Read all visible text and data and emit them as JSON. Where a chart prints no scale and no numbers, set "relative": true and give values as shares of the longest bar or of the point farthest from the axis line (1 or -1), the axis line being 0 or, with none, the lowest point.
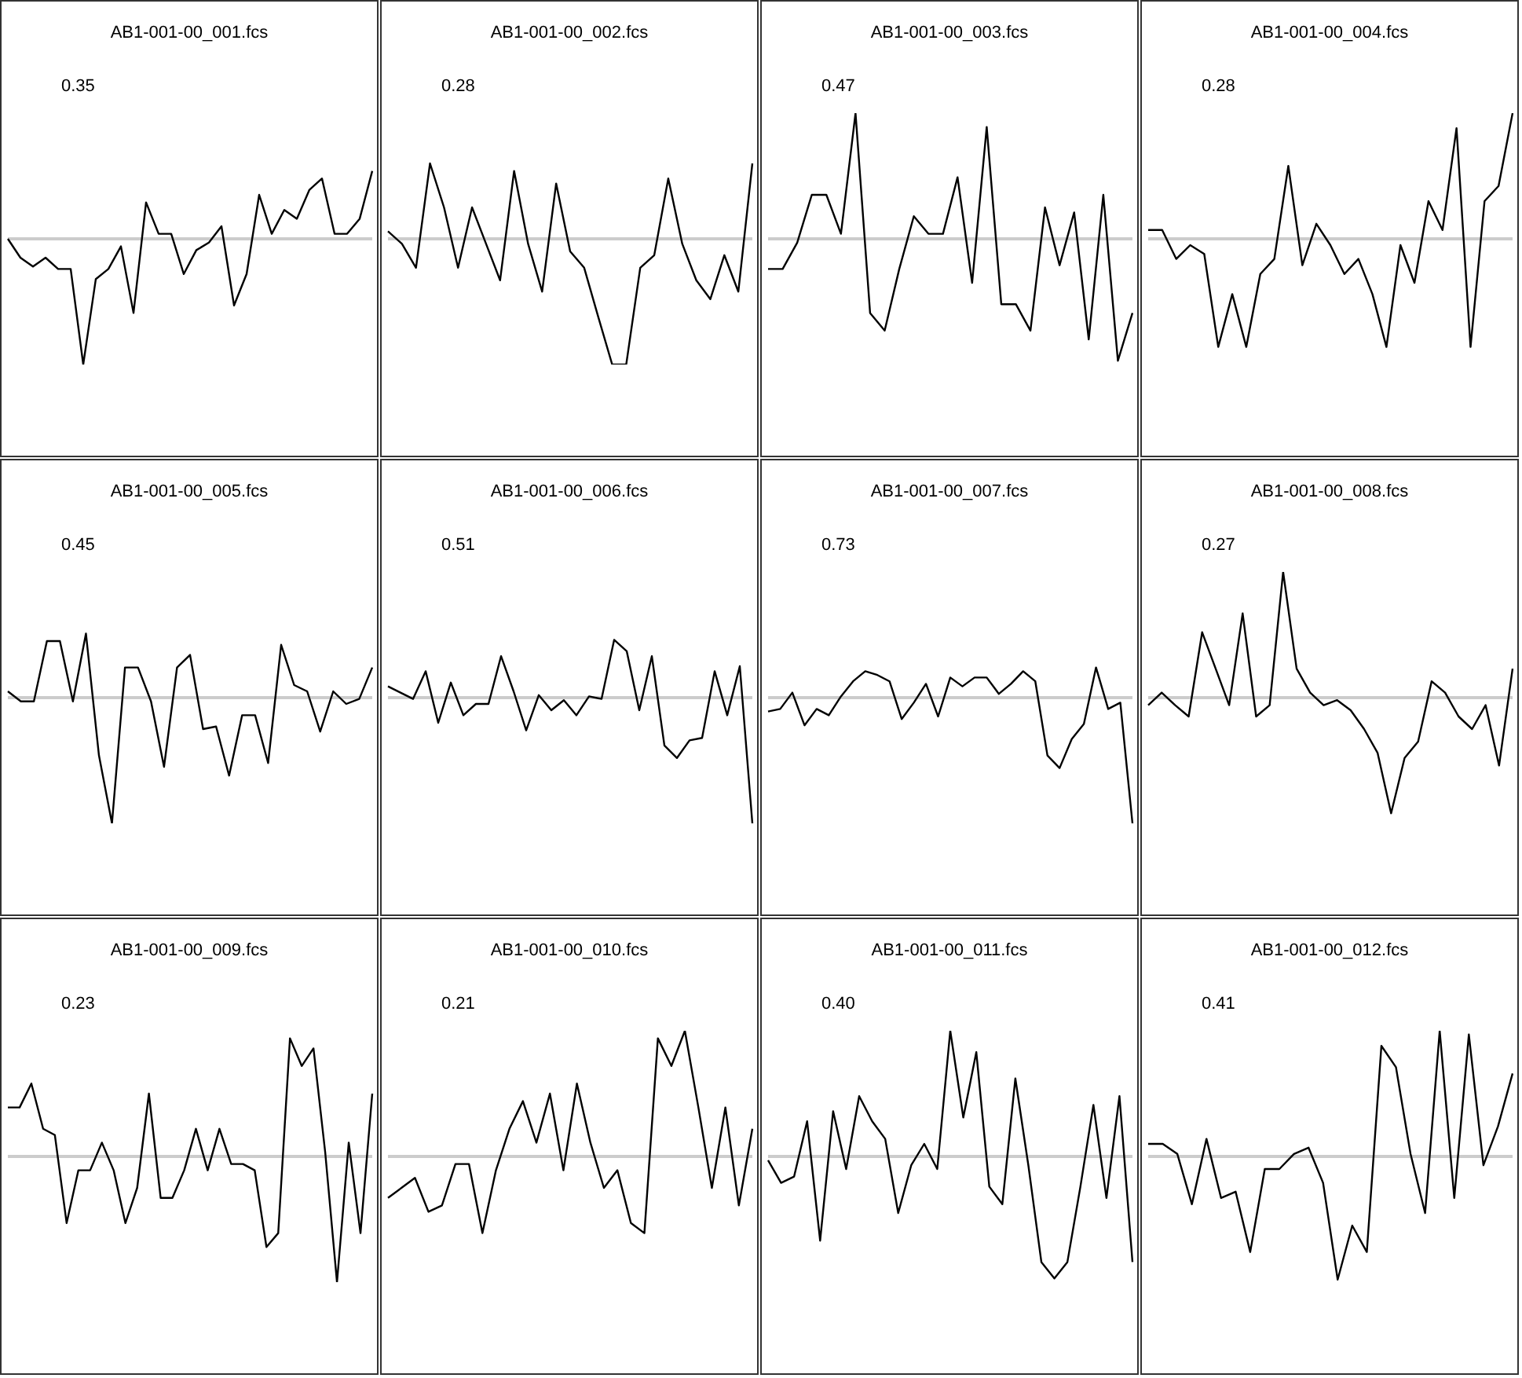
{
  "chart_data": [
    {
      "type": "line",
      "title": "AB1-001-00_001.fcs",
      "annotations": [
        "0.35"
      ],
      "relative": true,
      "tick_labels": false,
      "grid": false,
      "categories": [
        null,
        null,
        null,
        null,
        null,
        null,
        null,
        null,
        null,
        null,
        null,
        null,
        null,
        null,
        null,
        null,
        null,
        null,
        null,
        null,
        null,
        null,
        null,
        null,
        null,
        null,
        null,
        null,
        null,
        null
      ],
      "series": [
        {
          "color": "#000000",
          "values": [
            0,
            -0.15,
            -0.22,
            -0.15,
            -0.24,
            -0.24,
            -1,
            -0.32,
            -0.24,
            -0.06,
            -0.59,
            0.29,
            0.04,
            0.04,
            -0.28,
            -0.09,
            -0.03,
            0.1,
            -0.53,
            -0.28,
            0.35,
            0.04,
            0.23,
            0.16,
            0.39,
            0.48,
            0.04,
            0.04,
            0.16,
            0.54
          ]
        }
      ],
      "ref_lines": [
        {
          "axis": "y",
          "value": 0,
          "color": "#cccccc"
        }
      ]
    },
    {
      "type": "line",
      "title": "AB1-001-00_002.fcs",
      "annotations": [
        "0.28"
      ],
      "relative": true,
      "tick_labels": false,
      "grid": false,
      "categories": [
        null,
        null,
        null,
        null,
        null,
        null,
        null,
        null,
        null,
        null,
        null,
        null,
        null,
        null,
        null,
        null,
        null,
        null,
        null,
        null,
        null,
        null,
        null,
        null,
        null,
        null,
        null
      ],
      "series": [
        {
          "color": "#000000",
          "values": [
            0.06,
            -0.04,
            -0.23,
            0.6,
            0.25,
            -0.23,
            0.25,
            -0.04,
            -0.33,
            0.54,
            -0.04,
            -0.42,
            0.44,
            -0.1,
            -0.23,
            -0.62,
            -1,
            -1,
            -0.23,
            -0.13,
            0.48,
            -0.04,
            -0.33,
            -0.48,
            -0.13,
            -0.42,
            0.6
          ]
        }
      ],
      "ref_lines": [
        {
          "axis": "y",
          "value": 0,
          "color": "#cccccc"
        }
      ]
    },
    {
      "type": "line",
      "title": "AB1-001-00_003.fcs",
      "annotations": [
        "0.47"
      ],
      "relative": true,
      "tick_labels": false,
      "grid": false,
      "categories": [
        null,
        null,
        null,
        null,
        null,
        null,
        null,
        null,
        null,
        null,
        null,
        null,
        null,
        null,
        null,
        null,
        null,
        null,
        null,
        null,
        null,
        null,
        null,
        null,
        null,
        null
      ],
      "series": [
        {
          "color": "#000000",
          "values": [
            -0.24,
            -0.24,
            -0.03,
            0.35,
            0.35,
            0.04,
            1,
            -0.59,
            -0.73,
            -0.24,
            0.18,
            0.04,
            0.04,
            0.49,
            -0.35,
            0.89,
            -0.52,
            -0.52,
            -0.73,
            0.25,
            -0.21,
            0.21,
            -0.8,
            0.35,
            -0.97,
            -0.59
          ]
        }
      ],
      "ref_lines": [
        {
          "axis": "y",
          "value": 0,
          "color": "#cccccc"
        }
      ]
    },
    {
      "type": "line",
      "title": "AB1-001-00_004.fcs",
      "annotations": [
        "0.28"
      ],
      "relative": true,
      "tick_labels": false,
      "grid": false,
      "categories": [
        null,
        null,
        null,
        null,
        null,
        null,
        null,
        null,
        null,
        null,
        null,
        null,
        null,
        null,
        null,
        null,
        null,
        null,
        null,
        null,
        null,
        null,
        null,
        null,
        null,
        null,
        null
      ],
      "series": [
        {
          "color": "#000000",
          "values": [
            0.07,
            0.07,
            -0.16,
            -0.05,
            -0.12,
            -0.86,
            -0.44,
            -0.86,
            -0.28,
            -0.16,
            0.58,
            -0.21,
            0.12,
            -0.05,
            -0.28,
            -0.16,
            -0.44,
            -0.86,
            -0.05,
            -0.35,
            0.3,
            0.07,
            0.88,
            -0.86,
            0.3,
            0.42,
            1
          ]
        }
      ],
      "ref_lines": [
        {
          "axis": "y",
          "value": 0,
          "color": "#cccccc"
        }
      ]
    },
    {
      "type": "line",
      "title": "AB1-001-00_005.fcs",
      "annotations": [
        "0.45"
      ],
      "relative": true,
      "tick_labels": false,
      "grid": false,
      "categories": [
        null,
        null,
        null,
        null,
        null,
        null,
        null,
        null,
        null,
        null,
        null,
        null,
        null,
        null,
        null,
        null,
        null,
        null,
        null,
        null,
        null,
        null,
        null,
        null,
        null,
        null,
        null,
        null,
        null
      ],
      "series": [
        {
          "color": "#000000",
          "values": [
            0.05,
            -0.03,
            -0.03,
            0.45,
            0.45,
            -0.03,
            0.51,
            -0.46,
            -1,
            0.24,
            0.24,
            -0.03,
            -0.55,
            0.24,
            0.34,
            -0.25,
            -0.23,
            -0.62,
            -0.14,
            -0.14,
            -0.52,
            0.42,
            0.1,
            0.05,
            -0.27,
            0.05,
            -0.05,
            -0.01,
            0.24
          ]
        }
      ],
      "ref_lines": [
        {
          "axis": "y",
          "value": 0,
          "color": "#cccccc"
        }
      ]
    },
    {
      "type": "line",
      "title": "AB1-001-00_006.fcs",
      "annotations": [
        "0.51"
      ],
      "relative": true,
      "tick_labels": false,
      "grid": false,
      "categories": [
        null,
        null,
        null,
        null,
        null,
        null,
        null,
        null,
        null,
        null,
        null,
        null,
        null,
        null,
        null,
        null,
        null,
        null,
        null,
        null,
        null,
        null,
        null,
        null,
        null,
        null,
        null,
        null,
        null,
        null
      ],
      "series": [
        {
          "color": "#000000",
          "values": [
            0.09,
            0.04,
            -0.01,
            0.21,
            -0.2,
            0.12,
            -0.14,
            -0.05,
            -0.05,
            0.33,
            0.05,
            -0.26,
            0.02,
            -0.1,
            -0.02,
            -0.14,
            0.01,
            -0.01,
            0.46,
            0.37,
            -0.1,
            0.33,
            -0.38,
            -0.48,
            -0.34,
            -0.32,
            0.21,
            -0.14,
            0.25,
            -1
          ]
        }
      ],
      "ref_lines": [
        {
          "axis": "y",
          "value": 0,
          "color": "#cccccc"
        }
      ]
    },
    {
      "type": "line",
      "title": "AB1-001-00_007.fcs",
      "annotations": [
        "0.73"
      ],
      "relative": true,
      "tick_labels": false,
      "grid": false,
      "categories": [
        null,
        null,
        null,
        null,
        null,
        null,
        null,
        null,
        null,
        null,
        null,
        null,
        null,
        null,
        null,
        null,
        null,
        null,
        null,
        null,
        null,
        null,
        null,
        null,
        null,
        null,
        null,
        null,
        null,
        null,
        null
      ],
      "series": [
        {
          "color": "#000000",
          "values": [
            -0.11,
            -0.09,
            0.04,
            -0.22,
            -0.09,
            -0.14,
            0.01,
            0.13,
            0.21,
            0.18,
            0.13,
            -0.17,
            -0.04,
            0.11,
            -0.15,
            0.16,
            0.09,
            0.16,
            0.16,
            0.03,
            0.11,
            0.21,
            0.13,
            -0.46,
            -0.56,
            -0.33,
            -0.21,
            0.24,
            -0.09,
            -0.04,
            -1
          ]
        }
      ],
      "ref_lines": [
        {
          "axis": "y",
          "value": 0,
          "color": "#cccccc"
        }
      ]
    },
    {
      "type": "line",
      "title": "AB1-001-00_008.fcs",
      "annotations": [
        "0.27"
      ],
      "relative": true,
      "tick_labels": false,
      "grid": false,
      "categories": [
        null,
        null,
        null,
        null,
        null,
        null,
        null,
        null,
        null,
        null,
        null,
        null,
        null,
        null,
        null,
        null,
        null,
        null,
        null,
        null,
        null,
        null,
        null,
        null,
        null,
        null,
        null,
        null
      ],
      "series": [
        {
          "color": "#000000",
          "values": [
            -0.06,
            0.04,
            -0.06,
            -0.15,
            0.52,
            0.23,
            -0.06,
            0.67,
            -0.15,
            -0.06,
            1,
            0.23,
            0.04,
            -0.06,
            -0.02,
            -0.1,
            -0.25,
            -0.44,
            -0.92,
            -0.48,
            -0.35,
            0.13,
            0.04,
            -0.15,
            -0.25,
            -0.06,
            -0.54,
            0.23
          ]
        }
      ],
      "ref_lines": [
        {
          "axis": "y",
          "value": 0,
          "color": "#cccccc"
        }
      ]
    },
    {
      "type": "line",
      "title": "AB1-001-00_009.fcs",
      "annotations": [
        "0.23"
      ],
      "relative": true,
      "tick_labels": false,
      "grid": false,
      "categories": [
        null,
        null,
        null,
        null,
        null,
        null,
        null,
        null,
        null,
        null,
        null,
        null,
        null,
        null,
        null,
        null,
        null,
        null,
        null,
        null,
        null,
        null,
        null,
        null,
        null,
        null,
        null,
        null,
        null,
        null,
        null,
        null
      ],
      "series": [
        {
          "color": "#000000",
          "values": [
            0.39,
            0.39,
            0.58,
            0.22,
            0.17,
            -0.53,
            -0.11,
            -0.11,
            0.11,
            -0.11,
            -0.53,
            -0.25,
            0.5,
            -0.33,
            -0.33,
            -0.11,
            0.22,
            -0.11,
            0.22,
            -0.06,
            -0.06,
            -0.11,
            -0.72,
            -0.61,
            0.94,
            0.72,
            0.86,
            0.03,
            -1,
            0.11,
            -0.61,
            0.5
          ]
        }
      ],
      "ref_lines": [
        {
          "axis": "y",
          "value": 0,
          "color": "#cccccc"
        }
      ]
    },
    {
      "type": "line",
      "title": "AB1-001-00_010.fcs",
      "annotations": [
        "0.21"
      ],
      "relative": true,
      "tick_labels": false,
      "grid": false,
      "categories": [
        null,
        null,
        null,
        null,
        null,
        null,
        null,
        null,
        null,
        null,
        null,
        null,
        null,
        null,
        null,
        null,
        null,
        null,
        null,
        null,
        null,
        null,
        null,
        null,
        null,
        null,
        null,
        null
      ],
      "series": [
        {
          "color": "#000000",
          "values": [
            -0.33,
            -0.25,
            -0.17,
            -0.44,
            -0.39,
            -0.06,
            -0.06,
            -0.61,
            -0.11,
            0.22,
            0.44,
            0.11,
            0.5,
            -0.11,
            0.58,
            0.11,
            -0.25,
            -0.11,
            -0.53,
            -0.61,
            0.94,
            0.72,
            1,
            0.39,
            -0.25,
            0.39,
            -0.39,
            0.22
          ]
        }
      ],
      "ref_lines": [
        {
          "axis": "y",
          "value": 0,
          "color": "#cccccc"
        }
      ]
    },
    {
      "type": "line",
      "title": "AB1-001-00_011.fcs",
      "annotations": [
        "0.40"
      ],
      "relative": true,
      "tick_labels": false,
      "grid": false,
      "categories": [
        null,
        null,
        null,
        null,
        null,
        null,
        null,
        null,
        null,
        null,
        null,
        null,
        null,
        null,
        null,
        null,
        null,
        null,
        null,
        null,
        null,
        null,
        null,
        null,
        null,
        null,
        null,
        null,
        null
      ],
      "series": [
        {
          "color": "#000000",
          "values": [
            -0.03,
            -0.21,
            -0.16,
            0.28,
            -0.67,
            0.36,
            -0.1,
            0.48,
            0.28,
            0.14,
            -0.45,
            -0.07,
            0.1,
            -0.1,
            1,
            0.31,
            0.83,
            -0.24,
            -0.38,
            0.62,
            -0.07,
            -0.84,
            -0.97,
            -0.84,
            -0.24,
            0.41,
            -0.33,
            0.48,
            -0.84
          ]
        }
      ],
      "ref_lines": [
        {
          "axis": "y",
          "value": 0,
          "color": "#cccccc"
        }
      ]
    },
    {
      "type": "line",
      "title": "AB1-001-00_012.fcs",
      "annotations": [
        "0.41"
      ],
      "relative": true,
      "tick_labels": false,
      "grid": false,
      "categories": [
        null,
        null,
        null,
        null,
        null,
        null,
        null,
        null,
        null,
        null,
        null,
        null,
        null,
        null,
        null,
        null,
        null,
        null,
        null,
        null,
        null,
        null,
        null,
        null,
        null,
        null
      ],
      "series": [
        {
          "color": "#000000",
          "values": [
            0.1,
            0.1,
            0.02,
            -0.38,
            0.14,
            -0.33,
            -0.28,
            -0.76,
            -0.1,
            -0.1,
            0.02,
            0.07,
            -0.21,
            -0.98,
            -0.55,
            -0.76,
            0.88,
            0.71,
            0.02,
            -0.45,
            1,
            -0.33,
            0.97,
            -0.07,
            0.24,
            0.66
          ]
        }
      ],
      "ref_lines": [
        {
          "axis": "y",
          "value": 0,
          "color": "#cccccc"
        }
      ]
    }
  ]
}
